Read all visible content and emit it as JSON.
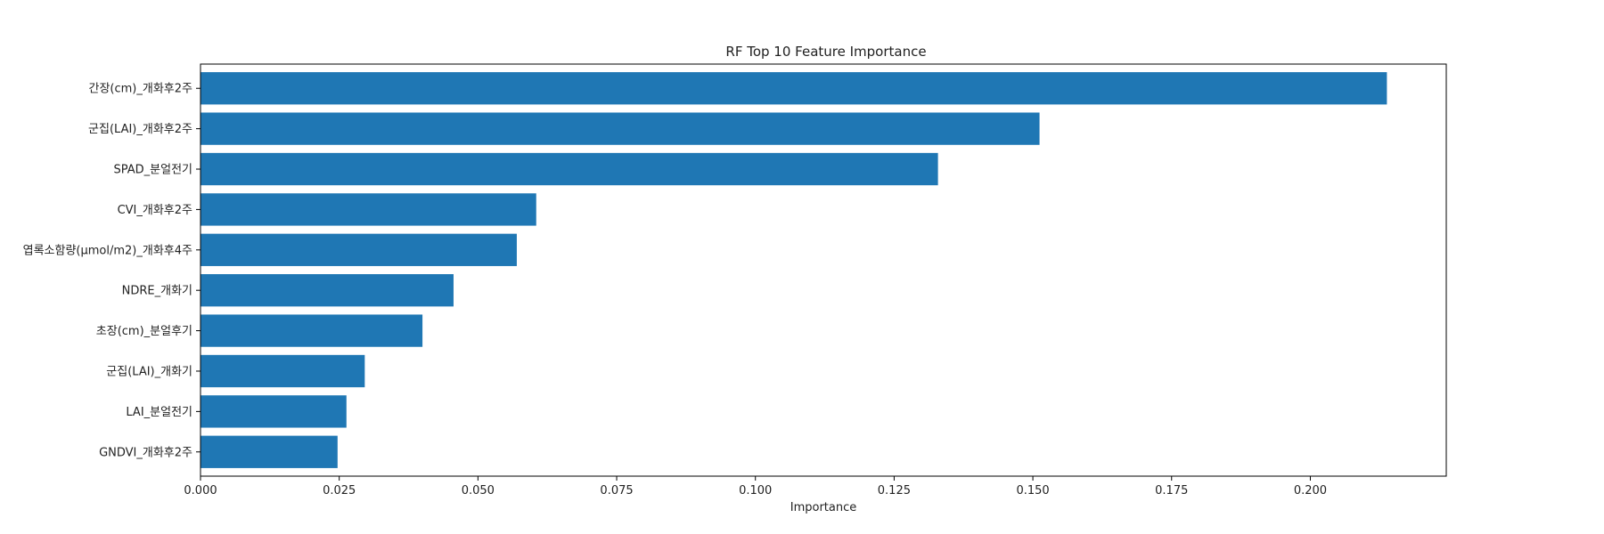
{
  "chart_data": {
    "type": "bar",
    "orientation": "horizontal",
    "title": "RF Top 10 Feature Importance",
    "xlabel": "Importance",
    "ylabel": "",
    "categories": [
      "간장(cm)_개화후2주",
      "군집(LAI)_개화후2주",
      "SPAD_분얼전기",
      "CVI_개화후2주",
      "엽록소함량(μmol/m2)_개화후4주",
      "NDRE_개화기",
      "초장(cm)_분얼후기",
      "군집(LAI)_개화기",
      "LAI_분얼전기",
      "GNDVI_개화후2주"
    ],
    "values": [
      0.2138,
      0.1512,
      0.1329,
      0.0605,
      0.057,
      0.0456,
      0.04,
      0.0296,
      0.0263,
      0.0247
    ],
    "xlim": [
      0,
      0.2245
    ],
    "xticks": [
      "0.000",
      "0.025",
      "0.050",
      "0.075",
      "0.100",
      "0.125",
      "0.150",
      "0.175",
      "0.200"
    ],
    "bar_color": "#1f77b4",
    "grid": false,
    "legend": "none"
  }
}
